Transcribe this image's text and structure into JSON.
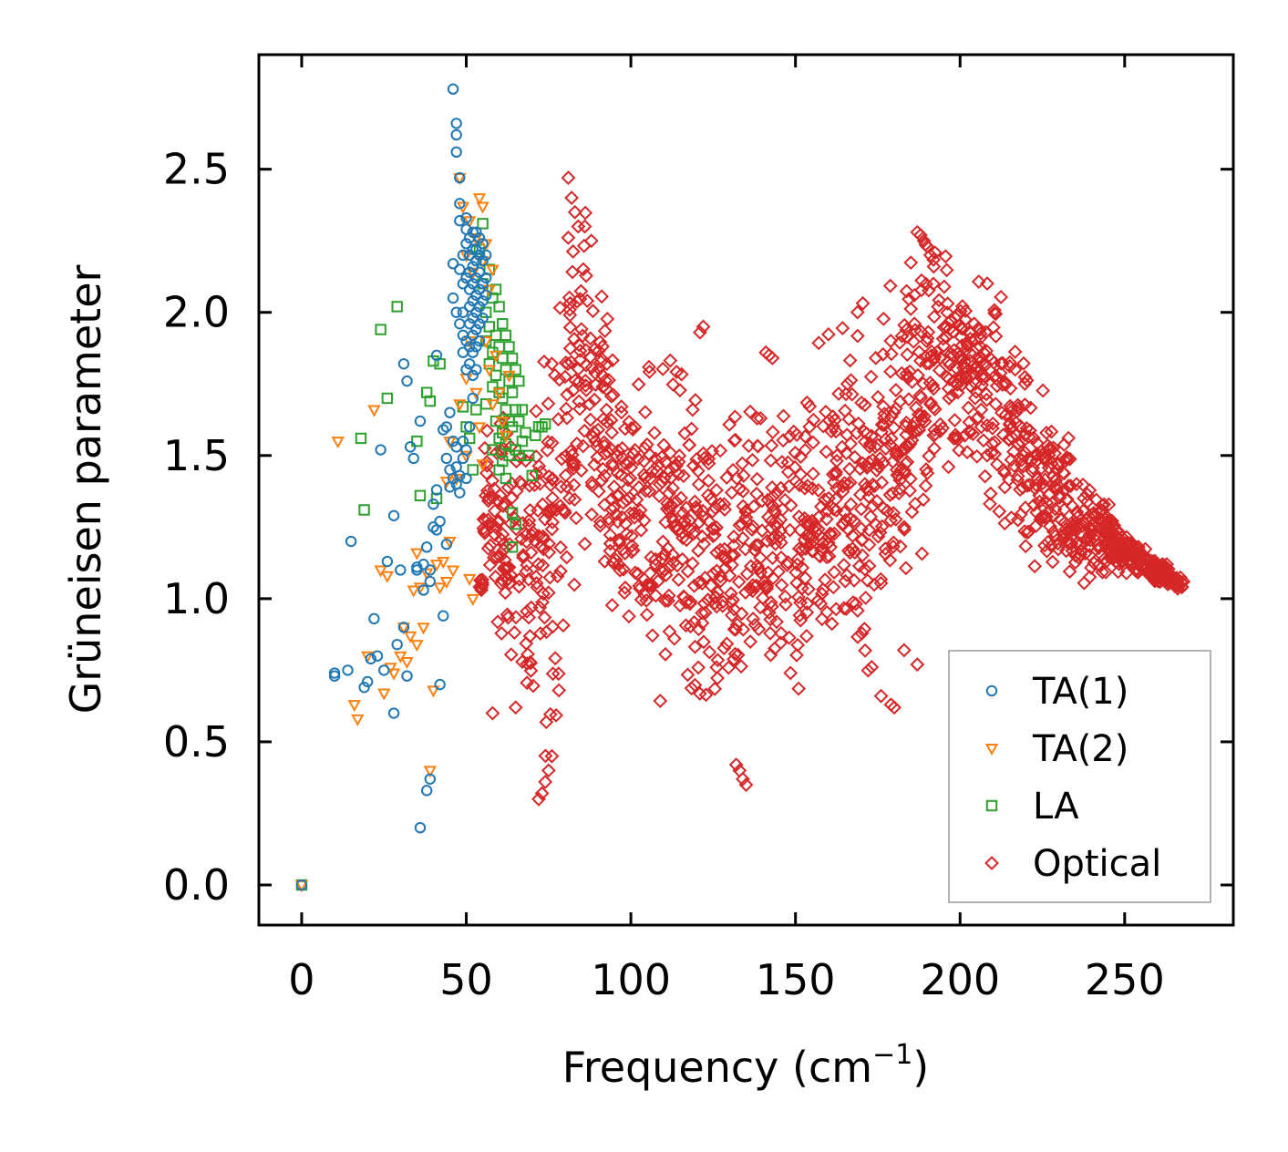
{
  "chart_data": {
    "type": "scatter",
    "title": "",
    "xlabel": "Frequency (cm",
    "xlabel_sup": "−1",
    "xlabel_close": ")",
    "ylabel": "Grüneisen parameter",
    "xlim": [
      -13,
      283
    ],
    "ylim": [
      -0.14,
      2.9
    ],
    "xticks": [
      "0",
      "50",
      "100",
      "150",
      "200",
      "250"
    ],
    "yticks": [
      "0.0",
      "0.5",
      "1.0",
      "1.5",
      "2.0",
      "2.5"
    ],
    "grid": false,
    "legend_position": "lower-right",
    "series": [
      {
        "name": "TA(1)",
        "marker": "circle",
        "color": "#1f77b4",
        "points": [
          [
            0,
            0
          ],
          [
            10,
            0.73
          ],
          [
            10,
            0.74
          ],
          [
            14,
            0.75
          ],
          [
            15,
            1.2
          ],
          [
            19,
            0.69
          ],
          [
            20,
            0.71
          ],
          [
            21,
            0.79
          ],
          [
            22,
            0.93
          ],
          [
            23,
            0.8
          ],
          [
            24,
            1.52
          ],
          [
            25,
            0.75
          ],
          [
            26,
            1.13
          ],
          [
            28,
            0.6
          ],
          [
            28,
            1.29
          ],
          [
            29,
            0.84
          ],
          [
            30,
            1.1
          ],
          [
            31,
            0.9
          ],
          [
            31,
            1.82
          ],
          [
            32,
            0.73
          ],
          [
            32,
            1.76
          ],
          [
            33,
            1.53
          ],
          [
            34,
            1.49
          ],
          [
            35,
            1.1
          ],
          [
            35,
            1.11
          ],
          [
            36,
            1.62
          ],
          [
            36,
            0.2
          ],
          [
            37,
            1.12
          ],
          [
            37,
            1.03
          ],
          [
            38,
            0.33
          ],
          [
            38,
            1.18
          ],
          [
            39,
            0.37
          ],
          [
            39,
            1.1
          ],
          [
            39,
            1.06
          ],
          [
            40,
            1.25
          ],
          [
            40,
            1.33
          ],
          [
            41,
            1.85
          ],
          [
            41,
            1.24
          ],
          [
            41,
            1.38
          ],
          [
            42,
            0.7
          ],
          [
            42,
            1.27
          ],
          [
            43,
            0.94
          ],
          [
            43,
            1.59
          ],
          [
            44,
            1.19
          ],
          [
            44,
            1.49
          ],
          [
            44,
            1.6
          ],
          [
            45,
            1.39
          ],
          [
            45,
            1.45
          ],
          [
            45,
            1.65
          ],
          [
            46,
            1.42
          ],
          [
            46,
            1.55
          ],
          [
            46,
            2.17
          ],
          [
            46,
            2.05
          ],
          [
            46,
            2.78
          ],
          [
            47,
            2.62
          ],
          [
            47,
            2.66
          ],
          [
            47,
            1.4
          ],
          [
            47,
            1.46
          ],
          [
            47,
            1.53
          ],
          [
            47,
            2.56
          ],
          [
            47,
            2.0
          ],
          [
            48,
            2.47
          ],
          [
            48,
            2.38
          ],
          [
            48,
            2.32
          ],
          [
            48,
            2.15
          ],
          [
            48,
            1.96
          ],
          [
            48,
            1.37
          ],
          [
            48,
            1.43
          ],
          [
            49,
            1.49
          ],
          [
            49,
            1.55
          ],
          [
            49,
            2.2
          ],
          [
            49,
            2.1
          ],
          [
            49,
            2.0
          ],
          [
            49,
            1.92
          ],
          [
            49,
            1.86
          ],
          [
            50,
            2.33
          ],
          [
            50,
            2.29
          ],
          [
            50,
            2.24
          ],
          [
            50,
            2.12
          ],
          [
            50,
            1.9
          ],
          [
            50,
            1.8
          ],
          [
            50,
            1.42
          ],
          [
            50,
            1.52
          ],
          [
            51,
            2.26
          ],
          [
            51,
            2.2
          ],
          [
            51,
            2.14
          ],
          [
            51,
            2.08
          ],
          [
            51,
            2.02
          ],
          [
            51,
            1.96
          ],
          [
            51,
            1.88
          ],
          [
            51,
            1.82
          ],
          [
            51,
            1.6
          ],
          [
            52,
            2.28
          ],
          [
            52,
            2.22
          ],
          [
            52,
            2.16
          ],
          [
            52,
            2.1
          ],
          [
            52,
            2.04
          ],
          [
            52,
            1.98
          ],
          [
            52,
            1.92
          ],
          [
            52,
            1.86
          ],
          [
            52,
            1.78
          ],
          [
            52,
            1.7
          ],
          [
            53,
            2.28
          ],
          [
            53,
            2.22
          ],
          [
            53,
            2.18
          ],
          [
            53,
            2.12
          ],
          [
            53,
            2.06
          ],
          [
            53,
            2.0
          ],
          [
            53,
            1.94
          ],
          [
            53,
            1.88
          ],
          [
            53,
            1.8
          ],
          [
            54,
            2.26
          ],
          [
            54,
            2.2
          ],
          [
            54,
            2.14
          ],
          [
            54,
            2.08
          ],
          [
            54,
            2.02
          ],
          [
            54,
            1.96
          ],
          [
            54,
            1.9
          ],
          [
            55,
            2.24
          ],
          [
            55,
            2.18
          ],
          [
            55,
            2.1
          ],
          [
            55,
            2.04
          ],
          [
            55,
            1.98
          ],
          [
            56,
            2.2
          ],
          [
            56,
            2.12
          ],
          [
            56,
            2.06
          ]
        ]
      },
      {
        "name": "TA(2)",
        "marker": "triangle-down",
        "color": "#ff7f0e",
        "points": [
          [
            0,
            0
          ],
          [
            11,
            1.55
          ],
          [
            16,
            0.63
          ],
          [
            17,
            0.58
          ],
          [
            20,
            0.8
          ],
          [
            22,
            1.66
          ],
          [
            24,
            1.1
          ],
          [
            25,
            0.67
          ],
          [
            26,
            1.08
          ],
          [
            27,
            0.76
          ],
          [
            28,
            0.74
          ],
          [
            30,
            0.8
          ],
          [
            31,
            0.9
          ],
          [
            32,
            0.78
          ],
          [
            33,
            0.87
          ],
          [
            34,
            1.03
          ],
          [
            35,
            0.84
          ],
          [
            35,
            1.16
          ],
          [
            36,
            1.04
          ],
          [
            37,
            0.9
          ],
          [
            38,
            1.09
          ],
          [
            39,
            0.4
          ],
          [
            40,
            0.68
          ],
          [
            41,
            1.12
          ],
          [
            42,
            1.04
          ],
          [
            43,
            1.13
          ],
          [
            44,
            1.06
          ],
          [
            44,
            1.41
          ],
          [
            45,
            1.2
          ],
          [
            45,
            1.55
          ],
          [
            46,
            1.1
          ],
          [
            47,
            1.42
          ],
          [
            48,
            1.68
          ],
          [
            48,
            2.47
          ],
          [
            49,
            2.37
          ],
          [
            50,
            1.77
          ],
          [
            50,
            2.2
          ],
          [
            50,
            1.5
          ],
          [
            51,
            2.32
          ],
          [
            51,
            1.9
          ],
          [
            51,
            1.07
          ],
          [
            52,
            2.14
          ],
          [
            52,
            1.0
          ],
          [
            53,
            2.26
          ],
          [
            53,
            1.72
          ],
          [
            54,
            2.4
          ],
          [
            54,
            1.6
          ],
          [
            55,
            2.37
          ],
          [
            55,
            2.18
          ],
          [
            55,
            1.47
          ],
          [
            56,
            2.24
          ],
          [
            56,
            1.9
          ],
          [
            57,
            2.08
          ],
          [
            57,
            1.8
          ],
          [
            58,
            2.15
          ],
          [
            58,
            1.68
          ],
          [
            59,
            1.85
          ],
          [
            60,
            1.72
          ],
          [
            61,
            1.62
          ],
          [
            62,
            1.57
          ],
          [
            63,
            1.78
          ]
        ]
      },
      {
        "name": "LA",
        "marker": "square",
        "color": "#2ca02c",
        "points": [
          [
            0,
            0
          ],
          [
            18,
            1.56
          ],
          [
            19,
            1.31
          ],
          [
            24,
            1.94
          ],
          [
            26,
            1.7
          ],
          [
            29,
            2.02
          ],
          [
            35,
            1.55
          ],
          [
            36,
            1.36
          ],
          [
            38,
            1.72
          ],
          [
            39,
            1.69
          ],
          [
            40,
            1.83
          ],
          [
            41,
            1.35
          ],
          [
            42,
            1.82
          ],
          [
            49,
            1.67
          ],
          [
            50,
            1.6
          ],
          [
            51,
            1.56
          ],
          [
            52,
            1.45
          ],
          [
            53,
            1.66
          ],
          [
            54,
            2.22
          ],
          [
            55,
            2.31
          ],
          [
            55,
            2.1
          ],
          [
            56,
            2.0
          ],
          [
            56,
            1.9
          ],
          [
            56,
            1.68
          ],
          [
            57,
            2.15
          ],
          [
            57,
            1.95
          ],
          [
            57,
            1.82
          ],
          [
            58,
            2.05
          ],
          [
            58,
            1.86
          ],
          [
            58,
            1.74
          ],
          [
            58,
            1.52
          ],
          [
            59,
            2.08
          ],
          [
            59,
            1.92
          ],
          [
            59,
            1.78
          ],
          [
            59,
            1.62
          ],
          [
            60,
            2.02
          ],
          [
            60,
            1.88
          ],
          [
            60,
            1.72
          ],
          [
            60,
            1.56
          ],
          [
            60,
            1.45
          ],
          [
            61,
            1.96
          ],
          [
            61,
            1.84
          ],
          [
            61,
            1.7
          ],
          [
            61,
            1.58
          ],
          [
            61,
            1.48
          ],
          [
            62,
            1.92
          ],
          [
            62,
            1.8
          ],
          [
            62,
            1.66
          ],
          [
            62,
            1.54
          ],
          [
            62,
            1.42
          ],
          [
            63,
            1.88
          ],
          [
            63,
            1.76
          ],
          [
            63,
            1.62
          ],
          [
            63,
            1.5
          ],
          [
            64,
            1.84
          ],
          [
            64,
            1.72
          ],
          [
            64,
            1.6
          ],
          [
            64,
            1.3
          ],
          [
            64,
            1.18
          ],
          [
            65,
            1.8
          ],
          [
            65,
            1.66
          ],
          [
            65,
            1.52
          ],
          [
            65,
            1.26
          ],
          [
            66,
            1.76
          ],
          [
            66,
            1.62
          ],
          [
            66,
            1.5
          ],
          [
            67,
            1.66
          ],
          [
            67,
            1.55
          ],
          [
            68,
            1.58
          ],
          [
            69,
            1.5
          ],
          [
            70,
            1.43
          ],
          [
            71,
            1.57
          ],
          [
            72,
            1.6
          ],
          [
            73,
            1.6
          ],
          [
            74,
            1.61
          ]
        ]
      },
      {
        "name": "Optical",
        "marker": "diamond",
        "color": "#d62728",
        "generated": true
      }
    ]
  }
}
